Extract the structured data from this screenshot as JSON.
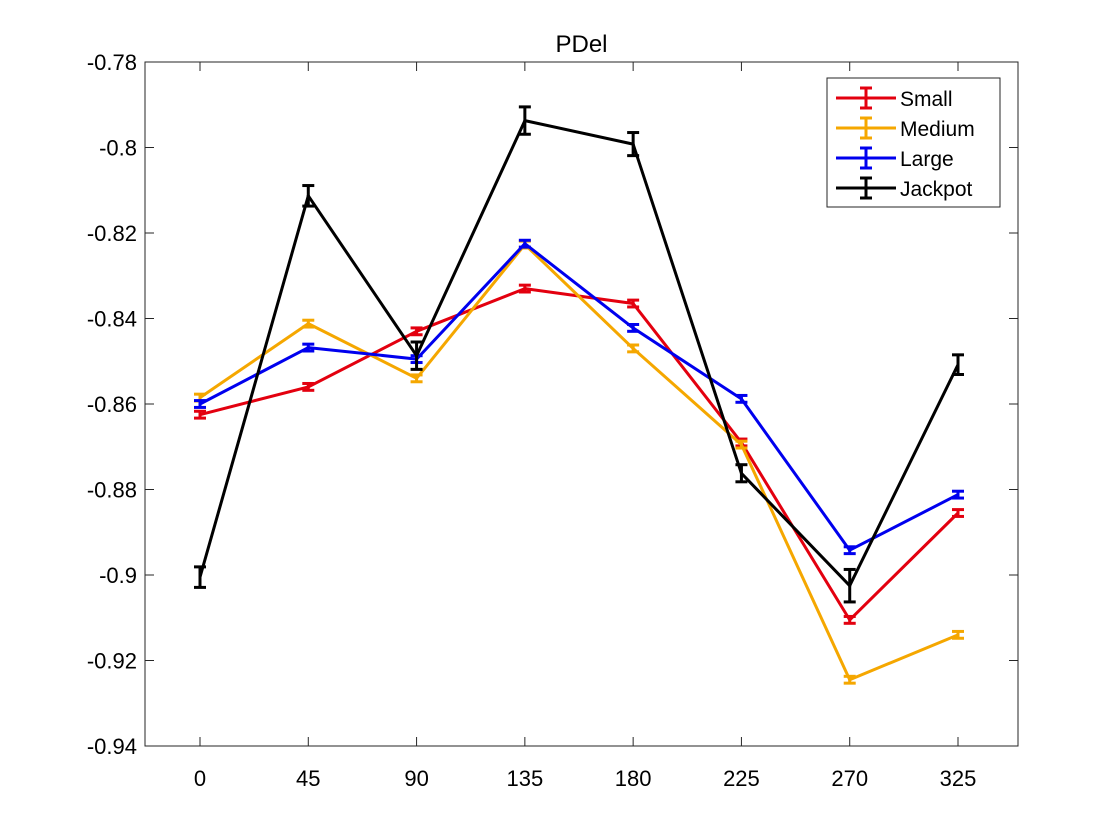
{
  "chart_data": {
    "type": "line",
    "title": "PDel",
    "xlabel": "",
    "ylabel": "",
    "categories": [
      "0",
      "45",
      "90",
      "135",
      "180",
      "225",
      "270",
      "325"
    ],
    "ylim": [
      -0.94,
      -0.78
    ],
    "yticks": [
      -0.94,
      -0.92,
      -0.9,
      -0.88,
      -0.86,
      -0.84,
      -0.82,
      -0.8,
      -0.78
    ],
    "ytick_labels": [
      "-0.94",
      "-0.92",
      "-0.9",
      "-0.88",
      "-0.86",
      "-0.84",
      "-0.82",
      "-0.8",
      "-0.78"
    ],
    "grid": false,
    "legend_position": "top-right",
    "error_bars": true,
    "series": [
      {
        "name": "Small",
        "color": "#e3000f",
        "values": [
          -0.8625,
          -0.856,
          -0.843,
          -0.833,
          -0.8365,
          -0.869,
          -0.9105,
          -0.8855
        ],
        "errors": [
          0.0008,
          0.0008,
          0.0008,
          0.0008,
          0.0008,
          0.0008,
          0.0008,
          0.0008
        ]
      },
      {
        "name": "Medium",
        "color": "#f5a700",
        "values": [
          -0.8585,
          -0.8412,
          -0.854,
          -0.8227,
          -0.847,
          -0.8695,
          -0.9245,
          -0.914
        ],
        "errors": [
          0.0008,
          0.0008,
          0.0008,
          0.0008,
          0.0008,
          0.0008,
          0.0008,
          0.0008
        ]
      },
      {
        "name": "Large",
        "color": "#0000ee",
        "values": [
          -0.86,
          -0.8468,
          -0.8495,
          -0.8225,
          -0.8422,
          -0.8588,
          -0.8942,
          -0.8812
        ],
        "errors": [
          0.0008,
          0.0008,
          0.0008,
          0.0008,
          0.0008,
          0.0008,
          0.0008,
          0.0008
        ]
      },
      {
        "name": "Jackpot",
        "color": "#000000",
        "values": [
          -0.9005,
          -0.8113,
          -0.8487,
          -0.7937,
          -0.7992,
          -0.8762,
          -0.9025,
          -0.8508
        ],
        "errors": [
          0.0024,
          0.0024,
          0.0032,
          0.0032,
          0.0027,
          0.002,
          0.0038,
          0.0023
        ]
      }
    ]
  }
}
